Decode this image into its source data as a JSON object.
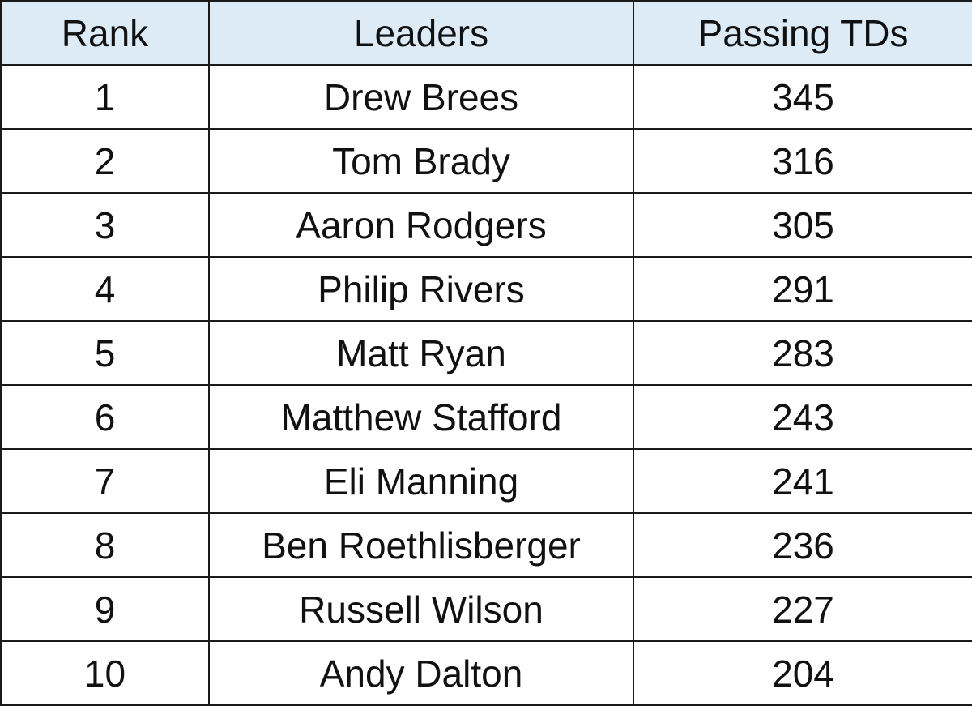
{
  "table": {
    "header": [
      "Rank",
      "Leaders",
      "Passing TDs"
    ],
    "rows": [
      [
        1,
        "Drew Brees",
        345
      ],
      [
        2,
        "Tom Brady",
        316
      ],
      [
        3,
        "Aaron Rodgers",
        305
      ],
      [
        4,
        "Philip Rivers",
        291
      ],
      [
        5,
        "Matt Ryan",
        283
      ],
      [
        6,
        "Matthew Stafford",
        243
      ],
      [
        7,
        "Eli Manning",
        241
      ],
      [
        8,
        "Ben Roethlisberger",
        236
      ],
      [
        9,
        "Russell Wilson",
        227
      ],
      [
        10,
        "Andy Dalton",
        204
      ]
    ]
  }
}
